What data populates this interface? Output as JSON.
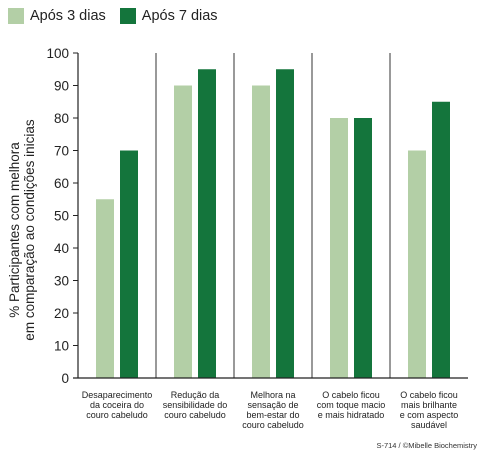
{
  "chart_data": {
    "type": "bar",
    "categories": [
      [
        "Desaparecimento",
        "da coceira do",
        "couro cabeludo"
      ],
      [
        "Redução da",
        "sensibilidade do",
        "couro cabeludo"
      ],
      [
        "Melhora na",
        "sensação de",
        "bem-estar do",
        "couro cabeludo"
      ],
      [
        "O cabelo ficou",
        "com toque macio",
        "e mais hidratado"
      ],
      [
        "O cabelo ficou",
        "mais brilhante",
        "e com aspecto",
        "saudável"
      ]
    ],
    "series": [
      {
        "name": "Após 3 dias",
        "values": [
          55,
          90,
          90,
          80,
          70
        ],
        "color": "#b3cfa6"
      },
      {
        "name": "Após 7 dias",
        "values": [
          70,
          95,
          95,
          80,
          85
        ],
        "color": "#14753c"
      }
    ],
    "ylabel": [
      "% Participantes com melhora",
      "em comparação ao condições inicias"
    ],
    "ylim": [
      0,
      100
    ],
    "yticks": [
      0,
      10,
      20,
      30,
      40,
      50,
      60,
      70,
      80,
      90,
      100
    ],
    "grid": "vertical-separators",
    "legend_position": "top-left"
  },
  "footer": "S-714 / ©Mibelle Biochemistry"
}
